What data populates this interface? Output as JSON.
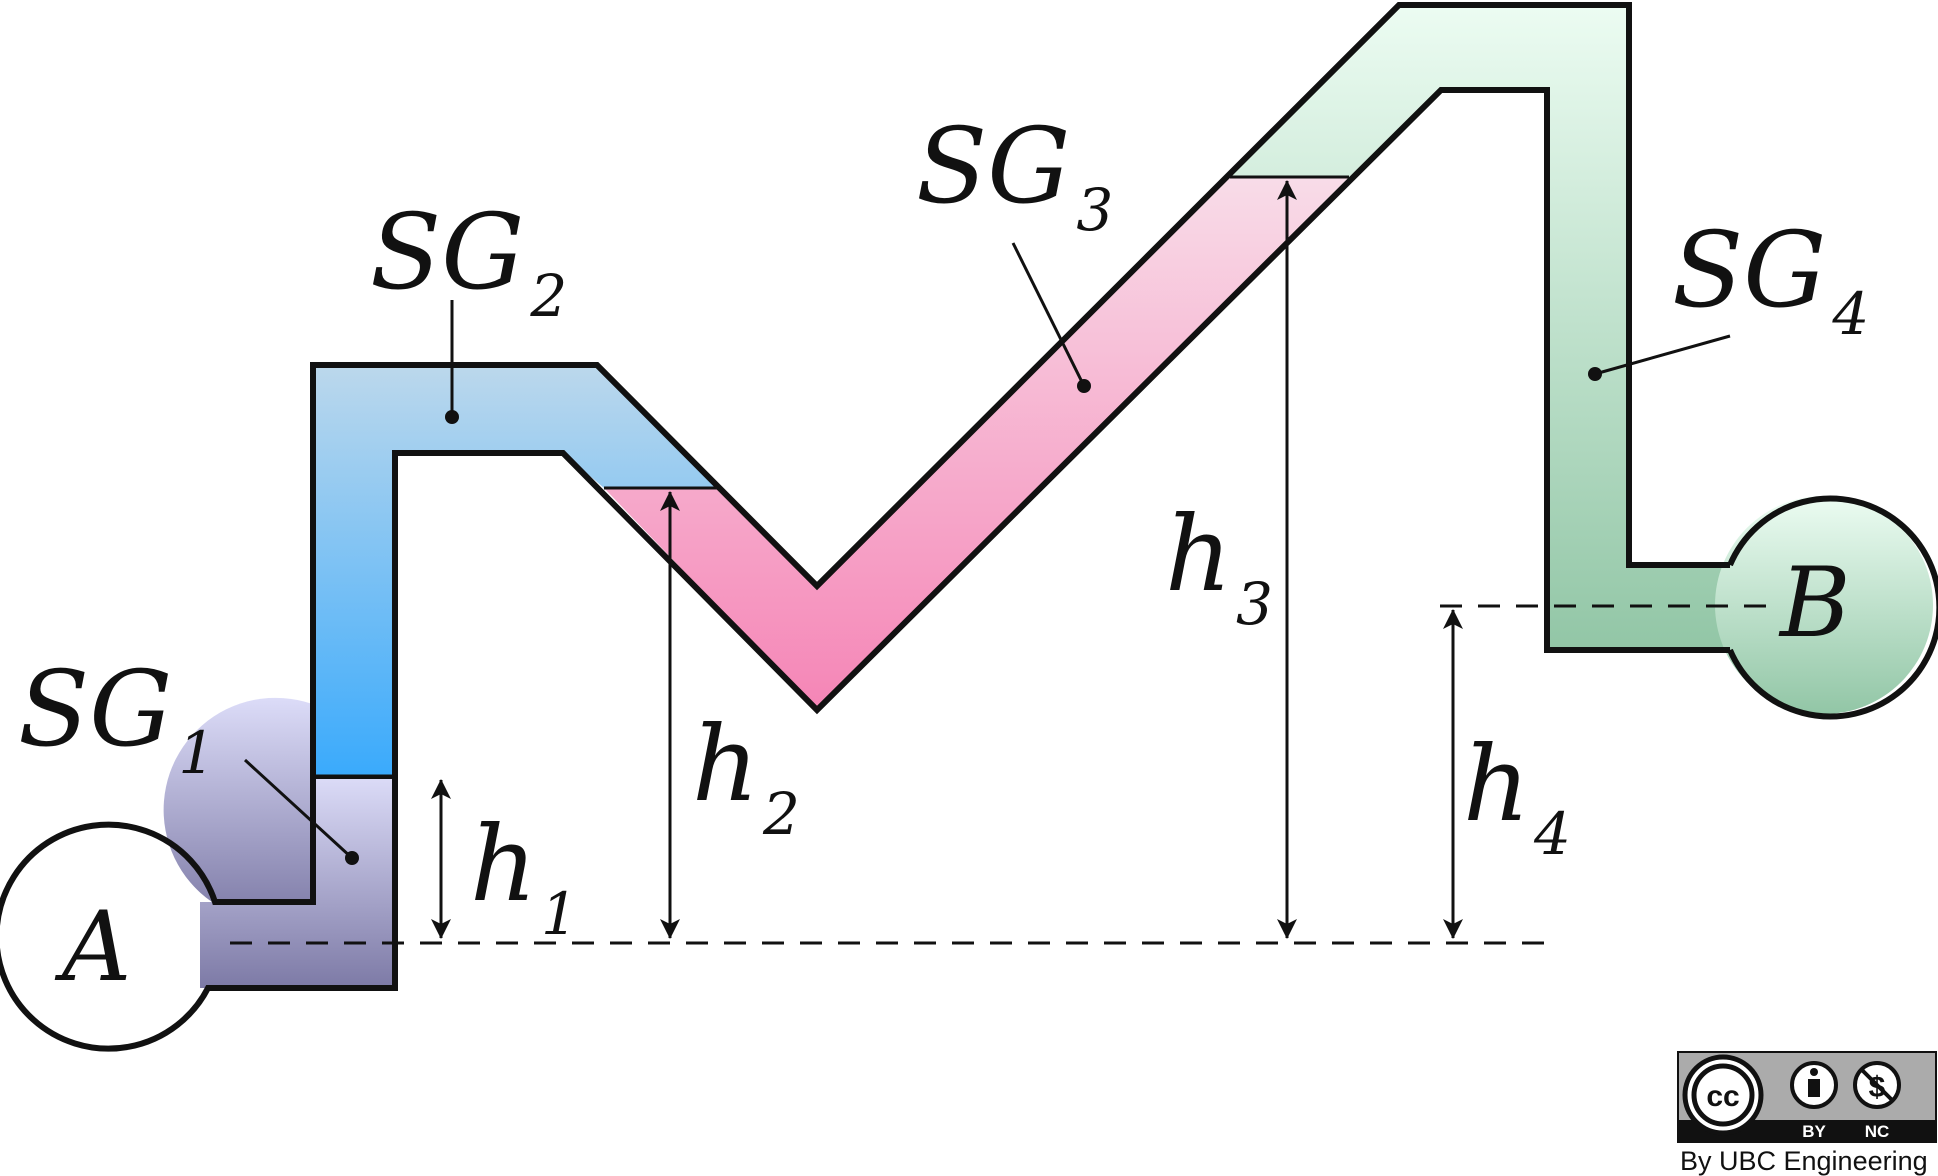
{
  "points": {
    "a": "A",
    "b": "B"
  },
  "fluids": {
    "sg1": {
      "main": "SG",
      "sub": "1"
    },
    "sg2": {
      "main": "SG",
      "sub": "2"
    },
    "sg3": {
      "main": "SG",
      "sub": "3"
    },
    "sg4": {
      "main": "SG",
      "sub": "4"
    }
  },
  "heights": {
    "h1": {
      "main": "h",
      "sub": "1"
    },
    "h2": {
      "main": "h",
      "sub": "2"
    },
    "h3": {
      "main": "h",
      "sub": "3"
    },
    "h4": {
      "main": "h",
      "sub": "4"
    }
  },
  "license": {
    "by": "BY",
    "nc": "NC",
    "cc": "cc",
    "credit": "By UBC Engineering"
  },
  "colors": {
    "sg1_top": "#dcdcf8",
    "sg1_bottom": "#7d7aa6",
    "sg2_top": "#bcd8ec",
    "sg2_bottom": "#3aaafc",
    "sg3_top": "#f8dce8",
    "sg3_bottom": "#f585b6",
    "sg4_top": "#ecfcf2",
    "sg4_bottom": "#92c6a6",
    "outline": "#111111"
  }
}
